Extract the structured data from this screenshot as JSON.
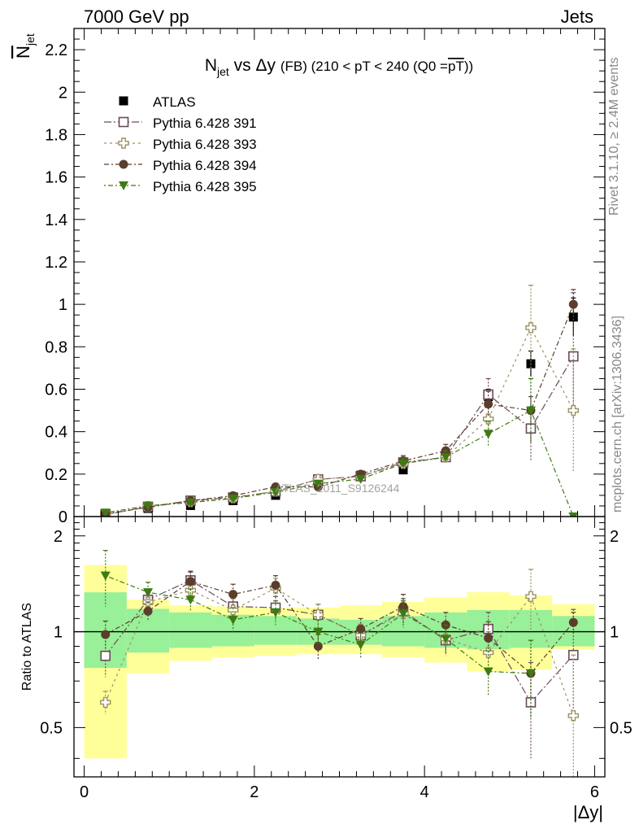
{
  "header": {
    "left": "7000 GeV pp",
    "right": "Jets"
  },
  "side_text": {
    "rivet": "Rivet 3.1.10, ≥ 2.4M events",
    "mcplots": "mcplots.cern.ch [arXiv:1306.3436]"
  },
  "watermark": "ATLAS_2011_S9126244",
  "colors": {
    "atlas": "#000000",
    "p391": "#6b4a5a",
    "p393": "#9c9160",
    "p394": "#5a3e2b",
    "p395": "#3e7a12",
    "band_green": "#98f098",
    "band_yellow": "#ffff99"
  },
  "chart_data": [
    {
      "type": "scatter",
      "panel": "main",
      "title": "N_jet vs Δy (FB) (210 < pT < 240 (Q0 = pT̅))",
      "title_parts": {
        "n": "N",
        "sub": "jet",
        "mid": " vs Δy ",
        "small": "(FB) (210 < pT < 240 (Q0 =",
        "overlined": "pT",
        "end": "))"
      },
      "ylabel": "N̅_jet",
      "ylabel_parts": {
        "main": "N",
        "sub": "jet"
      },
      "xlim": [
        -0.12,
        6.12
      ],
      "ylim": [
        0,
        2.3
      ],
      "y_ticks": [
        "0",
        "0.2",
        "0.4",
        "0.6",
        "0.8",
        "1",
        "1.2",
        "1.4",
        "1.6",
        "1.8",
        "2",
        "2.2"
      ],
      "legend_position": "top-left",
      "x": [
        0.25,
        0.75,
        1.25,
        1.75,
        2.25,
        2.75,
        3.25,
        3.75,
        4.25,
        4.75,
        5.25,
        5.75
      ],
      "series": [
        {
          "name": "ATLAS",
          "marker": "square-filled",
          "values": [
            0.012,
            0.038,
            0.052,
            0.075,
            0.1,
            0.155,
            0.195,
            0.22,
            0.295,
            0.565,
            0.72,
            0.94
          ],
          "errors": [
            0.002,
            0.003,
            0.004,
            0.005,
            0.007,
            0.01,
            0.013,
            0.015,
            0.02,
            0.035,
            0.06,
            0.09
          ]
        },
        {
          "name": "Pythia 6.428 391",
          "marker": "square-open",
          "values": [
            0.01,
            0.046,
            0.075,
            0.09,
            0.118,
            0.175,
            0.19,
            0.255,
            0.28,
            0.575,
            0.415,
            0.755
          ],
          "errors": [
            0.002,
            0.004,
            0.006,
            0.008,
            0.01,
            0.014,
            0.015,
            0.025,
            0.03,
            0.075,
            0.15,
            0.3
          ]
        },
        {
          "name": "Pythia 6.428 393",
          "marker": "cross-open",
          "values": [
            0.008,
            0.047,
            0.07,
            0.088,
            0.12,
            0.175,
            0.19,
            0.25,
            0.28,
            0.46,
            0.89,
            0.5
          ],
          "errors": [
            0.002,
            0.004,
            0.006,
            0.008,
            0.01,
            0.014,
            0.015,
            0.025,
            0.03,
            0.08,
            0.2,
            0.29
          ]
        },
        {
          "name": "Pythia 6.428 394",
          "marker": "circle-filled",
          "values": [
            0.012,
            0.044,
            0.075,
            0.098,
            0.14,
            0.14,
            0.2,
            0.262,
            0.31,
            0.53,
            0.5,
            1.0
          ],
          "errors": [
            0.002,
            0.004,
            0.006,
            0.008,
            0.01,
            0.012,
            0.015,
            0.025,
            0.03,
            0.06,
            0.15,
            0.07
          ]
        },
        {
          "name": "Pythia 6.428 395",
          "marker": "triangle-down-filled",
          "values": [
            0.018,
            0.051,
            0.066,
            0.085,
            0.115,
            0.155,
            0.177,
            0.25,
            0.28,
            0.39,
            0.5,
            0.0
          ],
          "errors": [
            0.003,
            0.004,
            0.006,
            0.008,
            0.01,
            0.013,
            0.015,
            0.025,
            0.03,
            0.06,
            0.15,
            0.0
          ]
        }
      ]
    },
    {
      "type": "scatter",
      "panel": "ratio",
      "ylabel": "Ratio to ATLAS",
      "xlabel": "|Δy|",
      "xlim": [
        -0.12,
        6.12
      ],
      "ylim": [
        0.35,
        2.3
      ],
      "y_ticks": [
        "0.5",
        "1",
        "2"
      ],
      "x_ticks": [
        "0",
        "2",
        "4",
        "6"
      ],
      "bins": [
        [
          0,
          0.5
        ],
        [
          0.5,
          1
        ],
        [
          1,
          1.5
        ],
        [
          1.5,
          2
        ],
        [
          2,
          2.5
        ],
        [
          2.5,
          3
        ],
        [
          3,
          3.5
        ],
        [
          3.5,
          4
        ],
        [
          4,
          4.5
        ],
        [
          4.5,
          5
        ],
        [
          5,
          5.5
        ],
        [
          5.5,
          6
        ]
      ],
      "band_green": [
        [
          0.77,
          1.33
        ],
        [
          0.86,
          1.18
        ],
        [
          0.89,
          1.15
        ],
        [
          0.9,
          1.13
        ],
        [
          0.91,
          1.12
        ],
        [
          0.91,
          1.1
        ],
        [
          0.91,
          1.09
        ],
        [
          0.9,
          1.12
        ],
        [
          0.89,
          1.15
        ],
        [
          0.88,
          1.17
        ],
        [
          0.89,
          1.17
        ],
        [
          0.9,
          1.12
        ]
      ],
      "band_yellow": [
        [
          0.4,
          1.62
        ],
        [
          0.74,
          1.26
        ],
        [
          0.81,
          1.21
        ],
        [
          0.83,
          1.2
        ],
        [
          0.84,
          1.19
        ],
        [
          0.85,
          1.19
        ],
        [
          0.85,
          1.21
        ],
        [
          0.83,
          1.24
        ],
        [
          0.8,
          1.28
        ],
        [
          0.75,
          1.33
        ],
        [
          0.76,
          1.3
        ],
        [
          0.88,
          1.22
        ]
      ],
      "x": [
        0.25,
        0.75,
        1.25,
        1.75,
        2.25,
        2.75,
        3.25,
        3.75,
        4.25,
        4.75,
        5.25,
        5.75
      ],
      "series": [
        {
          "name": "Pythia 6.428 391",
          "marker": "square-open",
          "values": [
            0.84,
            1.26,
            1.45,
            1.2,
            1.19,
            1.13,
            0.975,
            1.16,
            0.94,
            1.02,
            0.6,
            0.845
          ],
          "errors": [
            0.12,
            0.08,
            0.1,
            0.1,
            0.1,
            0.09,
            0.08,
            0.11,
            0.1,
            0.13,
            0.2,
            0.33
          ]
        },
        {
          "name": "Pythia 6.428 393",
          "marker": "cross-open",
          "values": [
            0.6,
            1.24,
            1.35,
            1.17,
            1.37,
            1.13,
            0.975,
            1.14,
            0.95,
            0.86,
            1.29,
            0.545
          ],
          "errors": [
            0.05,
            0.08,
            0.1,
            0.1,
            0.1,
            0.09,
            0.08,
            0.11,
            0.1,
            0.14,
            0.28,
            0.3
          ]
        },
        {
          "name": "Pythia 6.428 394",
          "marker": "circle-filled",
          "values": [
            0.98,
            1.16,
            1.44,
            1.31,
            1.4,
            0.9,
            1.02,
            1.2,
            1.05,
            0.955,
            0.74,
            1.07
          ],
          "errors": [
            0.1,
            0.08,
            0.1,
            0.1,
            0.1,
            0.08,
            0.08,
            0.11,
            0.1,
            0.12,
            0.2,
            0.08
          ]
        },
        {
          "name": "Pythia 6.428 395",
          "marker": "triangle-down-filled",
          "values": [
            1.5,
            1.33,
            1.26,
            1.09,
            1.15,
            1.0,
            0.91,
            1.14,
            0.95,
            0.75,
            0.74,
            null
          ],
          "errors": [
            0.3,
            0.1,
            0.1,
            0.1,
            0.1,
            0.09,
            0.08,
            0.11,
            0.1,
            0.12,
            0.2,
            0
          ]
        }
      ]
    }
  ]
}
